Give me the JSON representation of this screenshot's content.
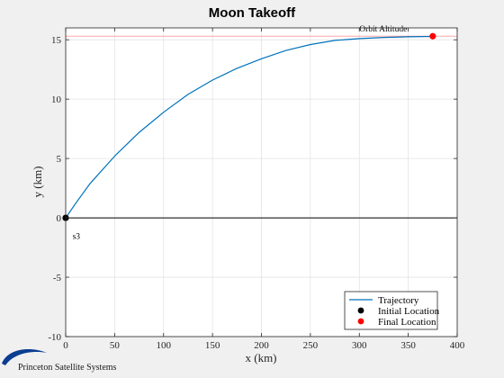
{
  "chart_data": {
    "type": "line",
    "title": "Moon Takeoff",
    "xlabel": "x (km)",
    "ylabel": "y (km)",
    "xlim": [
      0,
      400
    ],
    "ylim": [
      -10,
      16
    ],
    "xticks": [
      0,
      50,
      100,
      150,
      200,
      250,
      300,
      350,
      400
    ],
    "yticks": [
      -10,
      -5,
      0,
      5,
      10,
      15
    ],
    "grid": true,
    "legend_position": "bottom-right",
    "series": [
      {
        "name": "Trajectory",
        "color": "#0072bd",
        "x": [
          0,
          10,
          25,
          50,
          75,
          100,
          125,
          150,
          175,
          200,
          225,
          250,
          275,
          300,
          325,
          350,
          365,
          375
        ],
        "y": [
          0,
          1.2,
          2.9,
          5.2,
          7.2,
          8.9,
          10.4,
          11.6,
          12.6,
          13.4,
          14.1,
          14.6,
          14.95,
          15.1,
          15.2,
          15.25,
          15.27,
          15.28
        ]
      }
    ],
    "points": [
      {
        "name": "Initial Location",
        "x": 0,
        "y": 0,
        "color": "#000000"
      },
      {
        "name": "Final Location",
        "x": 375,
        "y": 15.3,
        "color": "#ff0000"
      }
    ],
    "reference_lines": [
      {
        "type": "horizontal",
        "y": 15.3,
        "color": "#ff9999",
        "label": "Orbit Altitude"
      },
      {
        "type": "horizontal",
        "y": 0,
        "color": "#000000",
        "label": ""
      }
    ],
    "annotations": [
      {
        "text": "Orbit Altitude",
        "x": 300,
        "y": 15.3
      },
      {
        "text": "s3",
        "x": 7,
        "y": -1
      }
    ]
  },
  "logo": {
    "text": "Princeton Satellite Systems",
    "color": "#0b3d91"
  }
}
